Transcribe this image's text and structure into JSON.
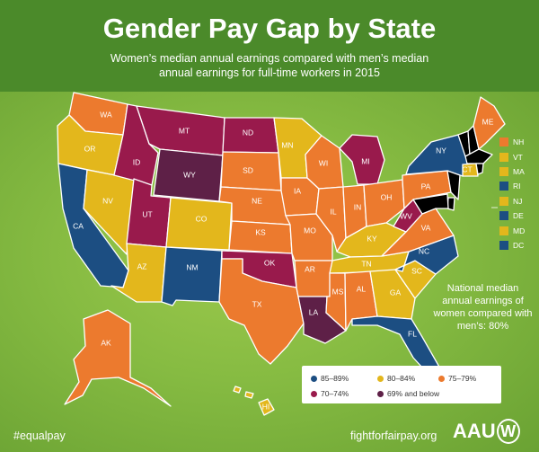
{
  "title": "Gender Pay Gap by State",
  "subtitle_line1": "Women’s median annual earnings compared with men’s median",
  "subtitle_line2": "annual earnings for full-time workers in 2015",
  "colors": {
    "c85_89": "#1c4e82",
    "c80_84": "#e3b71c",
    "c75_79": "#ec7a2e",
    "c70_74": "#991a4c",
    "c69_below": "#5e2047"
  },
  "legend": {
    "c85_89": "85–89%",
    "c80_84": "80–84%",
    "c75_79": "75–79%",
    "c70_74": "70–74%",
    "c69_below": "69% and below"
  },
  "side_legend": [
    {
      "state": "NH",
      "cat": "c75_79"
    },
    {
      "state": "VT",
      "cat": "c80_84"
    },
    {
      "state": "MA",
      "cat": "c80_84"
    },
    {
      "state": "RI",
      "cat": "c85_89"
    },
    {
      "state": "NJ",
      "cat": "c80_84"
    },
    {
      "state": "DE",
      "cat": "c85_89"
    },
    {
      "state": "MD",
      "cat": "c80_84"
    },
    {
      "state": "DC",
      "cat": "c85_89"
    }
  ],
  "states": {
    "WA": "c75_79",
    "OR": "c80_84",
    "CA": "c85_89",
    "NV": "c80_84",
    "ID": "c70_74",
    "MT": "c70_74",
    "WY": "c69_below",
    "UT": "c70_74",
    "AZ": "c80_84",
    "CO": "c80_84",
    "NM": "c85_89",
    "ND": "c70_74",
    "SD": "c75_79",
    "NE": "c75_79",
    "KS": "c75_79",
    "OK": "c70_74",
    "TX": "c75_79",
    "MN": "c80_84",
    "IA": "c75_79",
    "MO": "c75_79",
    "AR": "c75_79",
    "LA": "c69_below",
    "WI": "c75_79",
    "IL": "c75_79",
    "MI": "c70_74",
    "IN": "c75_79",
    "OH": "c75_79",
    "KY": "c80_84",
    "TN": "c80_84",
    "MS": "c75_79",
    "AL": "c75_79",
    "GA": "c80_84",
    "FL": "c85_89",
    "SC": "c80_84",
    "NC": "c85_89",
    "VA": "c75_79",
    "WV": "c70_74",
    "PA": "c75_79",
    "NY": "c85_89",
    "ME": "c75_79",
    "CT": "c80_84",
    "AK": "c75_79",
    "HI": "c80_84"
  },
  "national_note": "National median annual earnings of women compared with men’s: 80%",
  "hashtag": "#equalpay",
  "url": "fightforfairpay.org",
  "logo_text": "AAU",
  "logo_mark": "W"
}
